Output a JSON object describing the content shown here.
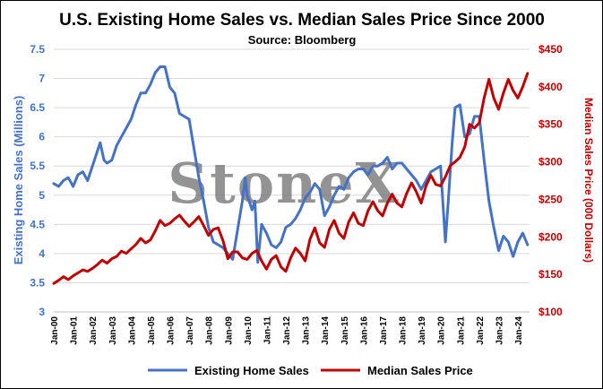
{
  "chart_data": {
    "type": "line",
    "title": "U.S. Existing Home Sales vs. Median Sales Price Since 2000",
    "subtitle": "Source: Bloomberg",
    "watermark": "StoneX",
    "ylabel_left": "Existing Home Sales (Millions)",
    "ylabel_right": "Median Sales Price (000 Dollars)",
    "ylim_left": [
      3,
      7.5
    ],
    "ylim_right": [
      100,
      450
    ],
    "yticks_left": [
      "3",
      "3.5",
      "4",
      "4.5",
      "5",
      "5.5",
      "6",
      "6.5",
      "7",
      "7.5"
    ],
    "yticks_right": [
      "$100",
      "$150",
      "$200",
      "$250",
      "$300",
      "$350",
      "$400",
      "$450"
    ],
    "xticks": [
      "Jan-00",
      "Jan-01",
      "Jan-02",
      "Jan-03",
      "Jan-04",
      "Jan-05",
      "Jan-06",
      "Jan-07",
      "Jan-08",
      "Jan-09",
      "Jan-10",
      "Jan-11",
      "Jan-12",
      "Jan-13",
      "Jan-14",
      "Jan-15",
      "Jan-16",
      "Jan-17",
      "Jan-18",
      "Jan-19",
      "Jan-20",
      "Jan-21",
      "Jan-22",
      "Jan-23",
      "Jan-24"
    ],
    "xlim": [
      2000.0,
      2024.6
    ],
    "legend_position": "bottom",
    "grid": "horizontal",
    "series": [
      {
        "name": "Existing Home Sales",
        "axis": "left",
        "color": "#4472C4",
        "x": [
          2000.0,
          2000.25,
          2000.5,
          2000.75,
          2001.0,
          2001.25,
          2001.5,
          2001.75,
          2002.0,
          2002.25,
          2002.4,
          2002.6,
          2002.75,
          2003.0,
          2003.25,
          2003.5,
          2003.75,
          2004.0,
          2004.25,
          2004.5,
          2004.75,
          2005.0,
          2005.25,
          2005.5,
          2005.75,
          2006.0,
          2006.25,
          2006.5,
          2006.75,
          2007.0,
          2007.25,
          2007.5,
          2007.75,
          2008.0,
          2008.25,
          2008.5,
          2008.75,
          2009.0,
          2009.25,
          2009.5,
          2009.75,
          2009.9,
          2010.0,
          2010.25,
          2010.4,
          2010.55,
          2010.75,
          2011.0,
          2011.25,
          2011.5,
          2011.75,
          2012.0,
          2012.25,
          2012.5,
          2012.75,
          2013.0,
          2013.25,
          2013.5,
          2013.75,
          2014.0,
          2014.25,
          2014.5,
          2014.75,
          2015.0,
          2015.25,
          2015.5,
          2015.75,
          2016.0,
          2016.25,
          2016.5,
          2016.75,
          2017.0,
          2017.25,
          2017.5,
          2017.75,
          2018.0,
          2018.25,
          2018.5,
          2018.75,
          2019.0,
          2019.25,
          2019.5,
          2019.75,
          2020.0,
          2020.25,
          2020.4,
          2020.6,
          2020.75,
          2021.0,
          2021.25,
          2021.5,
          2021.75,
          2022.0,
          2022.25,
          2022.5,
          2022.75,
          2023.0,
          2023.25,
          2023.5,
          2023.75,
          2024.0,
          2024.25,
          2024.5
        ],
        "y": [
          5.2,
          5.15,
          5.25,
          5.3,
          5.15,
          5.35,
          5.4,
          5.25,
          5.5,
          5.75,
          5.9,
          5.6,
          5.55,
          5.6,
          5.85,
          6.0,
          6.15,
          6.3,
          6.55,
          6.75,
          6.75,
          6.9,
          7.1,
          7.2,
          7.2,
          6.85,
          6.75,
          6.4,
          6.35,
          6.3,
          5.8,
          5.3,
          4.9,
          4.45,
          4.2,
          4.15,
          4.1,
          4.0,
          3.9,
          4.4,
          4.9,
          5.3,
          5.0,
          4.75,
          4.9,
          3.85,
          4.5,
          4.35,
          4.15,
          4.1,
          4.2,
          4.45,
          4.5,
          4.6,
          4.75,
          4.95,
          5.05,
          5.2,
          5.1,
          4.65,
          4.8,
          5.0,
          5.15,
          5.1,
          5.3,
          5.4,
          5.45,
          5.45,
          5.35,
          5.5,
          5.5,
          5.55,
          5.65,
          5.45,
          5.55,
          5.55,
          5.45,
          5.35,
          5.25,
          5.1,
          5.25,
          5.4,
          5.45,
          5.5,
          4.2,
          4.9,
          5.9,
          6.5,
          6.55,
          6.0,
          6.05,
          6.35,
          6.35,
          5.6,
          4.9,
          4.45,
          4.05,
          4.3,
          4.2,
          3.95,
          4.2,
          4.35,
          4.15
        ]
      },
      {
        "name": "Median Sales Price",
        "axis": "right",
        "color": "#C00000",
        "x": [
          2000.0,
          2000.25,
          2000.5,
          2000.75,
          2001.0,
          2001.25,
          2001.5,
          2001.75,
          2002.0,
          2002.25,
          2002.5,
          2002.75,
          2003.0,
          2003.25,
          2003.5,
          2003.75,
          2004.0,
          2004.25,
          2004.5,
          2004.75,
          2005.0,
          2005.25,
          2005.5,
          2005.75,
          2006.0,
          2006.25,
          2006.5,
          2006.75,
          2007.0,
          2007.25,
          2007.5,
          2007.75,
          2008.0,
          2008.25,
          2008.5,
          2008.75,
          2009.0,
          2009.25,
          2009.5,
          2009.75,
          2010.0,
          2010.25,
          2010.5,
          2010.75,
          2011.0,
          2011.25,
          2011.5,
          2011.75,
          2012.0,
          2012.25,
          2012.5,
          2012.75,
          2013.0,
          2013.25,
          2013.5,
          2013.75,
          2014.0,
          2014.25,
          2014.5,
          2014.75,
          2015.0,
          2015.25,
          2015.5,
          2015.75,
          2016.0,
          2016.25,
          2016.5,
          2016.75,
          2017.0,
          2017.25,
          2017.5,
          2017.75,
          2018.0,
          2018.25,
          2018.5,
          2018.75,
          2019.0,
          2019.25,
          2019.5,
          2019.75,
          2020.0,
          2020.25,
          2020.5,
          2020.75,
          2021.0,
          2021.25,
          2021.5,
          2021.75,
          2022.0,
          2022.25,
          2022.5,
          2022.75,
          2023.0,
          2023.25,
          2023.5,
          2023.75,
          2024.0,
          2024.25,
          2024.5
        ],
        "y": [
          138,
          142,
          147,
          143,
          148,
          152,
          156,
          154,
          158,
          163,
          169,
          165,
          171,
          174,
          181,
          178,
          184,
          190,
          198,
          192,
          196,
          208,
          222,
          215,
          218,
          224,
          229,
          221,
          214,
          220,
          227,
          215,
          202,
          210,
          212,
          195,
          171,
          180,
          180,
          172,
          170,
          178,
          182,
          168,
          157,
          170,
          175,
          160,
          154,
          172,
          185,
          178,
          168,
          197,
          212,
          192,
          186,
          210,
          222,
          205,
          198,
          220,
          232,
          218,
          215,
          235,
          247,
          235,
          228,
          245,
          257,
          245,
          240,
          258,
          272,
          260,
          245,
          268,
          282,
          270,
          268,
          280,
          295,
          300,
          306,
          320,
          350,
          345,
          352,
          385,
          410,
          385,
          370,
          392,
          410,
          395,
          385,
          400,
          418
        ]
      }
    ]
  }
}
